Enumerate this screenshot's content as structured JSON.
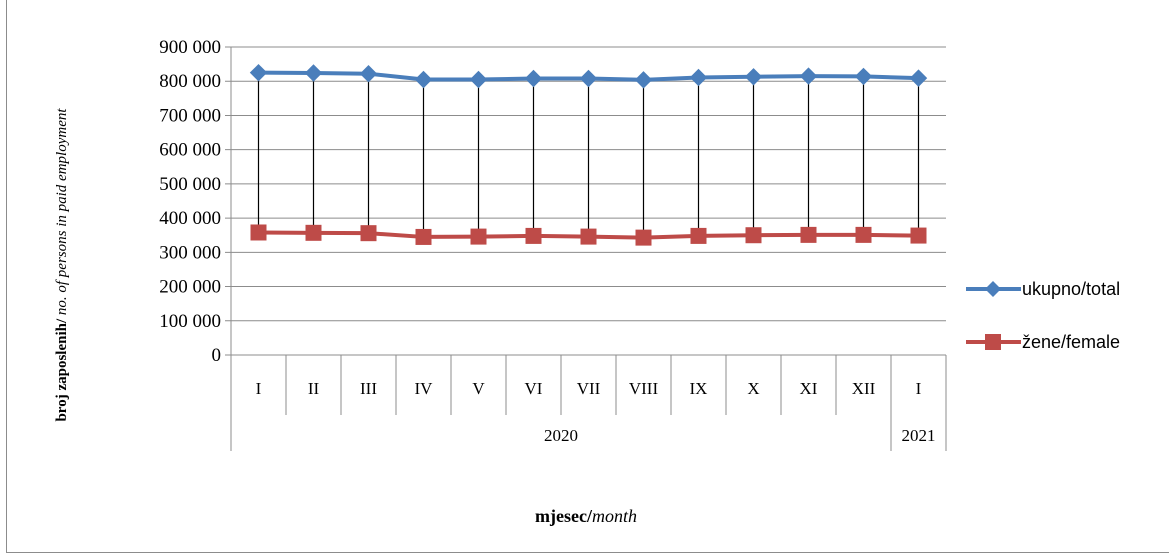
{
  "chart_data": {
    "type": "line",
    "ylabel_bold": "broj zaposlenih/",
    "ylabel_italic": " no. of persons  in paid employment",
    "xlabel_bold": "mjesec/",
    "xlabel_italic": "month",
    "ylim": [
      0,
      900000
    ],
    "y_ticks": [
      "0",
      "100 000",
      "200 000",
      "300 000",
      "400 000",
      "500 000",
      "600 000",
      "700 000",
      "800 000",
      "900 000"
    ],
    "categories": [
      "I",
      "II",
      "III",
      "IV",
      "V",
      "VI",
      "VII",
      "VIII",
      "IX",
      "X",
      "XI",
      "XII",
      "I"
    ],
    "year_groups": [
      {
        "label": "2020",
        "count": 12
      },
      {
        "label": "2021",
        "count": 1
      }
    ],
    "grid": "horizontal",
    "drop_lines": true,
    "legend_position": "right",
    "series": [
      {
        "name": "ukupno/total",
        "color": "#4a7ebb",
        "marker": "diamond",
        "values": [
          825000,
          824000,
          822000,
          805000,
          805000,
          808000,
          808000,
          804000,
          811000,
          813000,
          815000,
          814000,
          809000
        ]
      },
      {
        "name": "žene/female",
        "color": "#be4b48",
        "marker": "square",
        "values": [
          358000,
          357000,
          356000,
          345000,
          346000,
          348000,
          346000,
          343000,
          348000,
          350000,
          351000,
          351000,
          349000
        ]
      }
    ]
  }
}
